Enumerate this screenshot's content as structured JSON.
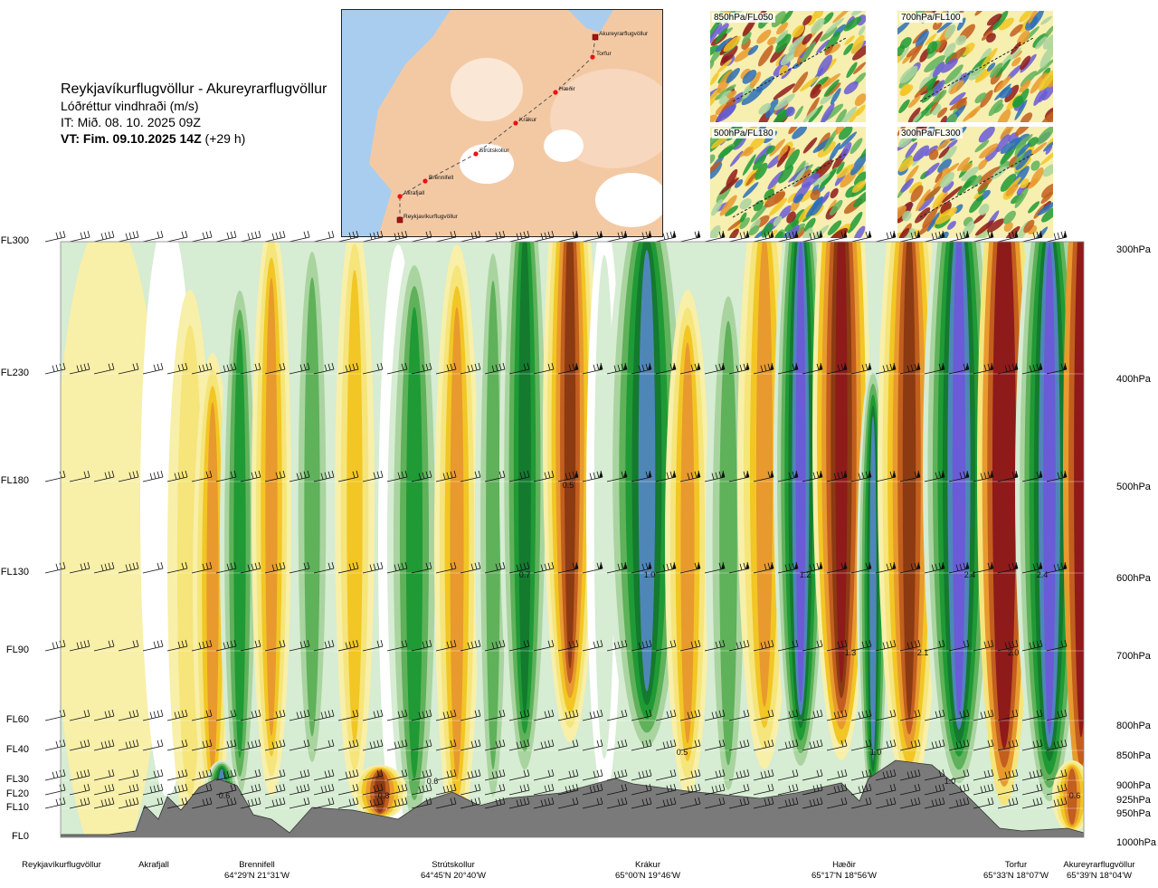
{
  "header": {
    "route": "Reykjavíkurflugvöllur - Akureyrarflugvöllur",
    "subtitle": "Lóðréttur vindhraði (m/s)",
    "issue_time": "IT: Mið. 08. 10. 2025 09Z",
    "valid_time_bold": "VT: Fim. 09.10.2025 14Z",
    "valid_time_suffix": " (+29 h)"
  },
  "map": {
    "waypoints": [
      "Akureyrarflugvöllur",
      "Torfur",
      "Hæðir",
      "Krákur",
      "Strútskollur",
      "Brennifell",
      "Akrafjall",
      "Reykjavíkurflugvöllur"
    ]
  },
  "thumbnails": [
    {
      "label": "850hPa/FL050"
    },
    {
      "label": "700hPa/FL100"
    },
    {
      "label": "500hPa/FL180"
    },
    {
      "label": "300hPa/FL300"
    }
  ],
  "colors": {
    "dark_brown": "#8b3a12",
    "brown": "#c25e1e",
    "orange": "#e89a2e",
    "gold": "#f2c624",
    "yellow": "#f5e57a",
    "pale_yellow": "#f8efa8",
    "white": "#ffffff",
    "pale_green": "#d6ecd3",
    "light_green": "#a9d4a0",
    "mid_green": "#5fb15a",
    "green": "#1f9a35",
    "dark_green": "#137a2e",
    "steel_blue": "#4f86b8",
    "purple_blue": "#6a5bd6",
    "dark_red": "#8e1a1a",
    "terrain": "#7a7a7a"
  },
  "chart_data": {
    "type": "heatmap",
    "variable": "Lóðréttur vindhraði (m/s)",
    "y_levels": [
      {
        "fl": "FL300",
        "hpa": "300hPa"
      },
      {
        "fl": "FL230",
        "hpa": "400hPa"
      },
      {
        "fl": "FL180",
        "hpa": "500hPa"
      },
      {
        "fl": "FL130",
        "hpa": "600hPa"
      },
      {
        "fl": "FL90",
        "hpa": "700hPa"
      },
      {
        "fl": "FL60",
        "hpa": "800hPa"
      },
      {
        "fl": "FL40",
        "hpa": "850hPa"
      },
      {
        "fl": "FL30",
        "hpa": "900hPa"
      },
      {
        "fl": "FL20",
        "hpa": "925hPa"
      },
      {
        "fl": "FL10",
        "hpa": "950hPa"
      },
      {
        "fl": "FL0",
        "hpa": "1000hPa"
      }
    ],
    "x_stations": [
      {
        "name": "Reykjavíkurflugvöllur",
        "coord": ""
      },
      {
        "name": "Akrafjall",
        "coord": ""
      },
      {
        "name": "Brennifell",
        "coord": "64°29'N 21°31'W"
      },
      {
        "name": "Strútskollur",
        "coord": "64°45'N 20°40'W"
      },
      {
        "name": "Krákur",
        "coord": "65°00'N 19°46'W"
      },
      {
        "name": "Hæðir",
        "coord": "65°17'N 18°56'W"
      },
      {
        "name": "Torfur",
        "coord": "65°33'N 18°07'W"
      },
      {
        "name": "Akureyrarflugvöllur",
        "coord": "65°39'N 18°04'W"
      }
    ],
    "contour_labels": [
      "0.6",
      "0.6",
      "0.5",
      "0.7",
      "1.0",
      "1.2",
      "2.4",
      "2.4",
      "1.3",
      "2.1",
      "2.0",
      "0.5",
      "1.0",
      "1.0",
      "0.8",
      "0.6"
    ]
  }
}
